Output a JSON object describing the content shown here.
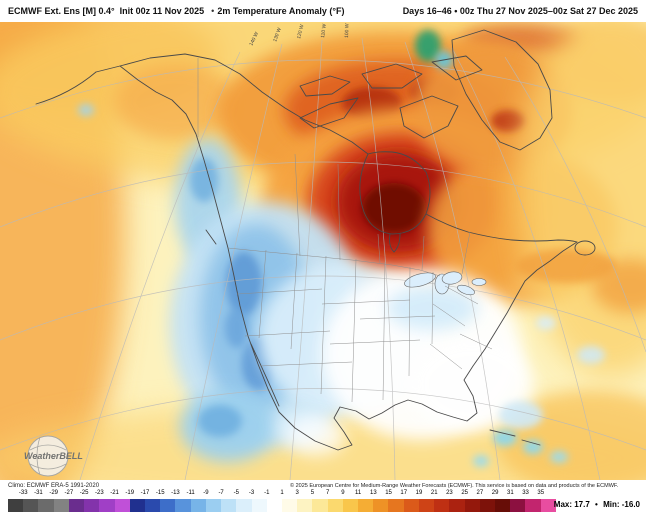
{
  "header": {
    "model": "ECMWF Ext. Ens [M] 0.4°",
    "init": "Init 00z 11 Nov 2025",
    "bullet": "•",
    "field": "2m Temperature Anomaly (°F)",
    "valid_range": "Days 16–46 • 00z Thu 27 Nov 2025–00z Sat 27 Dec 2025"
  },
  "map": {
    "meridian_labels": [
      "140 W",
      "130 W",
      "120 W",
      "110 W",
      "100 W"
    ],
    "watermark": "WeatherBELL"
  },
  "footer": {
    "climo": "Climo: ECMWF ERA-5 1991-2020",
    "copyright": "© 2025 European Centre for Medium-Range Weather Forecasts (ECMWF). This service is based on data and products of the ECMWF.",
    "max_label": "Max: 17.7",
    "bullet": "•",
    "min_label": "Min: -16.0"
  },
  "colorbar": {
    "units": "°F anomaly",
    "ticks": [
      -33,
      -31,
      -29,
      -27,
      -25,
      -23,
      -21,
      -19,
      -17,
      -15,
      -13,
      -11,
      -9,
      -7,
      -5,
      -3,
      -1,
      1,
      3,
      5,
      7,
      9,
      11,
      13,
      15,
      17,
      19,
      21,
      23,
      25,
      27,
      29,
      31,
      33,
      35
    ],
    "colors": [
      "#3f3f3f",
      "#555555",
      "#6b6b6b",
      "#828282",
      "#6a2d8e",
      "#8333ab",
      "#a03fc6",
      "#c050d8",
      "#20308f",
      "#2a4aad",
      "#3d6ec9",
      "#5893dc",
      "#77b4e8",
      "#9bcef1",
      "#bde1f7",
      "#dbeffb",
      "#eef8fd",
      "#ffffff",
      "#fffbe8",
      "#fdf3c2",
      "#fce898",
      "#fbd96e",
      "#f9c64b",
      "#f5ad34",
      "#ee9226",
      "#e6761f",
      "#db5a1a",
      "#ce4316",
      "#bf3013",
      "#ab2210",
      "#94180c",
      "#7d120a",
      "#670d07",
      "#8c1040",
      "#c2256e",
      "#e84da0"
    ]
  }
}
